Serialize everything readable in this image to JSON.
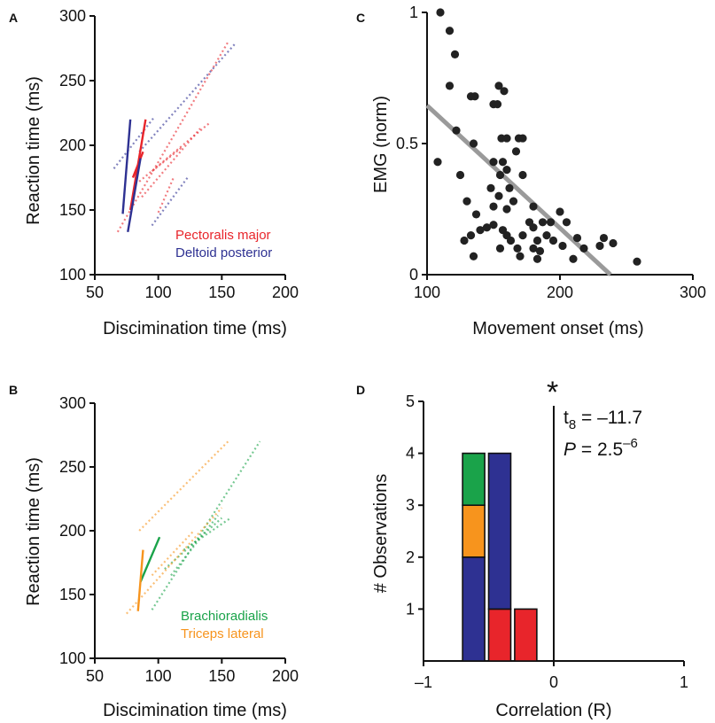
{
  "colors": {
    "pectoralis": "#e8252b",
    "deltoid": "#2e3192",
    "brachioradialis": "#1aa34a",
    "triceps": "#f7941d",
    "scatter_point": "#222222",
    "regression": "#9a9a9a"
  },
  "panels": {
    "A": {
      "letter": "A",
      "xlabel": "Discimination time (ms)",
      "ylabel": "Reaction time (ms)",
      "legend": [
        "Pectoralis major",
        "Deltoid posterior"
      ]
    },
    "B": {
      "letter": "B",
      "xlabel": "Discimination time (ms)",
      "ylabel": "Reaction time (ms)",
      "legend": [
        "Brachioradialis",
        "Triceps lateral"
      ]
    },
    "C": {
      "letter": "C",
      "xlabel": "Movement onset (ms)",
      "ylabel": "EMG (norm)"
    },
    "D": {
      "letter": "D",
      "xlabel": "Correlation (R)",
      "ylabel": "# Observations",
      "stat_t_sym": "t",
      "stat_t_sub": "8",
      "stat_t_val": " = –11.7",
      "stat_p_sym": "P",
      "stat_p_val": " = 2.5",
      "stat_p_exp": "–6",
      "sig_marker": "*"
    }
  },
  "chart_data": [
    {
      "panel": "A",
      "type": "line",
      "xlabel": "Discimination time (ms)",
      "ylabel": "Reaction time (ms)",
      "xlim": [
        50,
        200
      ],
      "ylim": [
        100,
        300
      ],
      "xticks": [
        50,
        100,
        150,
        200
      ],
      "yticks": [
        100,
        150,
        200,
        250,
        300
      ],
      "legend_position": "bottom-right",
      "series": [
        {
          "name": "Pectoralis major",
          "color_key": "pectoralis",
          "solid": [
            [
              78,
              150
            ],
            [
              90,
              220
            ]
          ],
          "solid2": [
            [
              80,
              175
            ],
            [
              88,
              195
            ]
          ],
          "dotted": [
            [
              [
                68,
                133
              ],
              [
                155,
                280
              ]
            ],
            [
              [
                85,
                172
              ],
              [
                140,
                217
              ]
            ],
            [
              [
                87,
                160
              ],
              [
                133,
                213
              ]
            ],
            [
              [
                95,
                180
              ],
              [
                118,
                198
              ]
            ],
            [
              [
                100,
                148
              ],
              [
                112,
                175
              ]
            ]
          ]
        },
        {
          "name": "Deltoid posterior",
          "color_key": "deltoid",
          "solid": [
            [
              72,
              147
            ],
            [
              78,
              220
            ]
          ],
          "solid2": [
            [
              76,
              133
            ],
            [
              86,
              190
            ]
          ],
          "dotted": [
            [
              [
                65,
                182
              ],
              [
                97,
                222
              ]
            ],
            [
              [
                85,
                195
              ],
              [
                160,
                278
              ]
            ],
            [
              [
                95,
                138
              ],
              [
                123,
                175
              ]
            ]
          ]
        }
      ]
    },
    {
      "panel": "B",
      "type": "line",
      "xlabel": "Discimination time (ms)",
      "ylabel": "Reaction time (ms)",
      "xlim": [
        50,
        200
      ],
      "ylim": [
        100,
        300
      ],
      "xticks": [
        50,
        100,
        150,
        200
      ],
      "yticks": [
        100,
        150,
        200,
        250,
        300
      ],
      "legend_position": "bottom-right",
      "series": [
        {
          "name": "Brachioradialis",
          "color_key": "brachioradialis",
          "solid": [
            [
              86,
              160
            ],
            [
              101,
              195
            ]
          ],
          "dotted": [
            [
              [
                95,
                138
              ],
              [
                180,
                270
              ]
            ],
            [
              [
                110,
                165
              ],
              [
                147,
                212
              ]
            ],
            [
              [
                105,
                170
              ],
              [
                150,
                210
              ]
            ],
            [
              [
                120,
                185
              ],
              [
                157,
                210
              ]
            ]
          ]
        },
        {
          "name": "Triceps lateral",
          "color_key": "triceps",
          "solid": [
            [
              84,
              137
            ],
            [
              88,
              185
            ]
          ],
          "dotted": [
            [
              [
                75,
                135
              ],
              [
                150,
                218
              ]
            ],
            [
              [
                85,
                200
              ],
              [
                155,
                270
              ]
            ],
            [
              [
                95,
                165
              ],
              [
                128,
                200
              ]
            ]
          ]
        }
      ]
    },
    {
      "panel": "C",
      "type": "scatter",
      "xlabel": "Movement onset (ms)",
      "ylabel": "EMG (norm)",
      "xlim": [
        100,
        300
      ],
      "ylim": [
        0,
        1
      ],
      "xticks": [
        100,
        200,
        300
      ],
      "yticks": [
        0,
        0.5,
        1
      ],
      "ytick_labels": [
        "0",
        "0.5",
        "1"
      ],
      "regression": [
        [
          100,
          0.645
        ],
        [
          238,
          0.0
        ]
      ],
      "points": [
        [
          110,
          1.0
        ],
        [
          117,
          0.93
        ],
        [
          121,
          0.84
        ],
        [
          117,
          0.72
        ],
        [
          108,
          0.43
        ],
        [
          122,
          0.55
        ],
        [
          125,
          0.38
        ],
        [
          130,
          0.28
        ],
        [
          133,
          0.68
        ],
        [
          136,
          0.68
        ],
        [
          135,
          0.5
        ],
        [
          133,
          0.15
        ],
        [
          137,
          0.23
        ],
        [
          140,
          0.17
        ],
        [
          135,
          0.07
        ],
        [
          128,
          0.13
        ],
        [
          145,
          0.18
        ],
        [
          150,
          0.26
        ],
        [
          148,
          0.33
        ],
        [
          150,
          0.43
        ],
        [
          150,
          0.65
        ],
        [
          153,
          0.65
        ],
        [
          154,
          0.72
        ],
        [
          156,
          0.52
        ],
        [
          158,
          0.7
        ],
        [
          160,
          0.52
        ],
        [
          154,
          0.3
        ],
        [
          155,
          0.38
        ],
        [
          157,
          0.43
        ],
        [
          160,
          0.4
        ],
        [
          162,
          0.33
        ],
        [
          165,
          0.28
        ],
        [
          167,
          0.47
        ],
        [
          169,
          0.52
        ],
        [
          172,
          0.52
        ],
        [
          172,
          0.38
        ],
        [
          160,
          0.25
        ],
        [
          150,
          0.19
        ],
        [
          157,
          0.17
        ],
        [
          160,
          0.15
        ],
        [
          163,
          0.13
        ],
        [
          168,
          0.1
        ],
        [
          172,
          0.15
        ],
        [
          177,
          0.2
        ],
        [
          180,
          0.26
        ],
        [
          180,
          0.18
        ],
        [
          183,
          0.13
        ],
        [
          180,
          0.1
        ],
        [
          183,
          0.06
        ],
        [
          185,
          0.09
        ],
        [
          187,
          0.2
        ],
        [
          190,
          0.15
        ],
        [
          193,
          0.2
        ],
        [
          195,
          0.13
        ],
        [
          200,
          0.24
        ],
        [
          205,
          0.2
        ],
        [
          202,
          0.11
        ],
        [
          210,
          0.06
        ],
        [
          213,
          0.14
        ],
        [
          218,
          0.1
        ],
        [
          230,
          0.11
        ],
        [
          233,
          0.14
        ],
        [
          240,
          0.12
        ],
        [
          258,
          0.05
        ],
        [
          170,
          0.07
        ],
        [
          155,
          0.1
        ]
      ]
    },
    {
      "panel": "D",
      "type": "bar",
      "xlabel": "Correlation (R)",
      "ylabel": "# Observations",
      "xlim": [
        -1,
        1
      ],
      "ylim": [
        0,
        5
      ],
      "xticks": [
        -1,
        0,
        1
      ],
      "xtick_labels": [
        "–1",
        "0",
        "1"
      ],
      "yticks": [
        1,
        2,
        3,
        4,
        5
      ],
      "reference_line_x": 0,
      "bins": [
        {
          "x0": -0.7,
          "x1": -0.53,
          "stack": [
            {
              "name": "Deltoid posterior",
              "color_key": "deltoid",
              "count": 2
            },
            {
              "name": "Triceps lateral",
              "color_key": "triceps",
              "count": 1
            },
            {
              "name": "Brachioradialis",
              "color_key": "brachioradialis",
              "count": 1
            }
          ]
        },
        {
          "x0": -0.5,
          "x1": -0.33,
          "stack": [
            {
              "name": "Pectoralis major",
              "color_key": "pectoralis",
              "count": 1
            },
            {
              "name": "Deltoid posterior",
              "color_key": "deltoid",
              "count": 3
            }
          ]
        },
        {
          "x0": -0.3,
          "x1": -0.13,
          "stack": [
            {
              "name": "Pectoralis major",
              "color_key": "pectoralis",
              "count": 1
            }
          ]
        }
      ]
    }
  ]
}
